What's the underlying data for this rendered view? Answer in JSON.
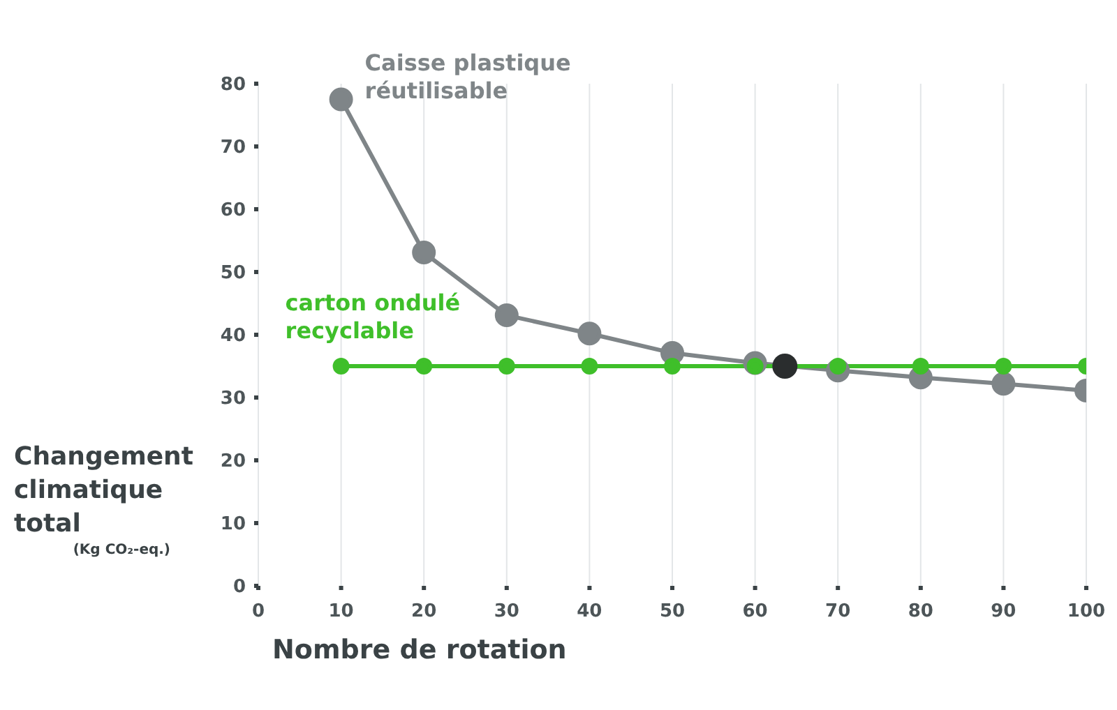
{
  "chart_data": {
    "type": "line",
    "xlabel": "Nombre de rotation",
    "ylabel": "Changement climatique total (Kg CO₂-eq.)",
    "x": [
      10,
      20,
      30,
      40,
      50,
      60,
      70,
      80,
      90,
      100
    ],
    "series": [
      {
        "name": "Caisse plastique réutilisable",
        "color": "#7f8588",
        "values": [
          77.5,
          53.1,
          43.1,
          40.2,
          37.1,
          35.5,
          34.3,
          33.2,
          32.2,
          31.1
        ]
      },
      {
        "name": "carton ondulé recyclable",
        "color": "#3fbf2a",
        "values": [
          35,
          35,
          35,
          35,
          35,
          35,
          35,
          35,
          35,
          35
        ]
      },
      {
        "type": "scatter",
        "color": "#2a2d2e",
        "x": [
          63.6
        ],
        "values": [
          35
        ]
      }
    ],
    "xlim": [
      0,
      100
    ],
    "xticks": [
      0,
      10,
      20,
      30,
      40,
      50,
      60,
      70,
      80,
      90,
      100
    ],
    "ylim": [
      0,
      80
    ],
    "yticks": [
      0,
      10,
      20,
      30,
      40,
      50,
      60,
      70,
      80
    ],
    "grid": "x",
    "marker": "circle",
    "line_style": "solid"
  }
}
